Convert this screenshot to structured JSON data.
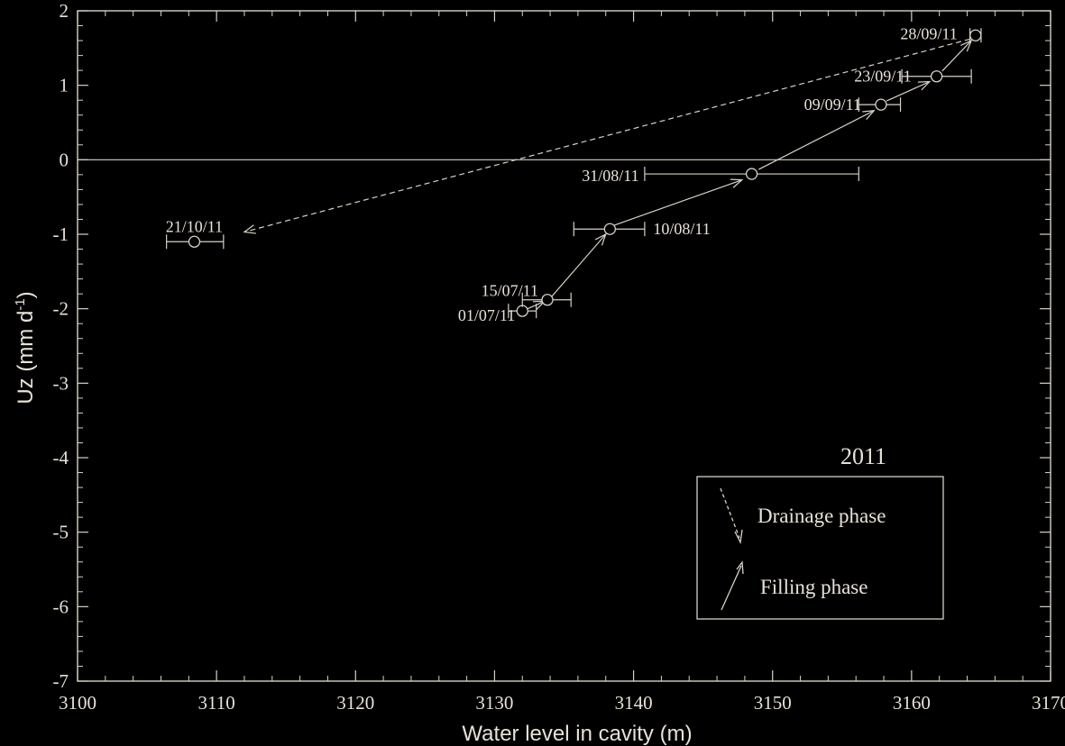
{
  "chart_data": {
    "type": "scatter",
    "title": "",
    "xlabel": "Water level in cavity (m)",
    "ylabel": "Uz (mm d",
    "ylabel_superscript": "-1",
    "ylabel_suffix": ")",
    "xlim": [
      3100,
      3170
    ],
    "ylim": [
      -7,
      2
    ],
    "xticks": [
      "3100",
      "3110",
      "3120",
      "3130",
      "3140",
      "3150",
      "3160",
      "3170"
    ],
    "yticks": [
      "-7",
      "-6",
      "-5",
      "-4",
      "-3",
      "-2",
      "-1",
      "0",
      "1",
      "2"
    ],
    "grid": false,
    "zero_line": true,
    "year_label": "2011",
    "legend": {
      "placement": "lower-right",
      "entries": [
        {
          "label": "Drainage phase",
          "style": "dashed-arrow"
        },
        {
          "label": "Filling phase",
          "style": "solid-arrow"
        }
      ]
    },
    "points": [
      {
        "label": "01/07/11",
        "x": 3132.0,
        "y": -2.03,
        "xerr_low": 3131.0,
        "xerr_high": 3133.0
      },
      {
        "label": "15/07/11",
        "x": 3133.8,
        "y": -1.88,
        "xerr_low": 3132.0,
        "xerr_high": 3135.5
      },
      {
        "label": "10/08/11",
        "x": 3138.3,
        "y": -0.93,
        "xerr_low": 3135.7,
        "xerr_high": 3140.8
      },
      {
        "label": "31/08/11",
        "x": 3148.5,
        "y": -0.19,
        "xerr_low": 3140.8,
        "xerr_high": 3156.2
      },
      {
        "label": "09/09/11",
        "x": 3157.8,
        "y": 0.74,
        "xerr_low": 3156.2,
        "xerr_high": 3159.2
      },
      {
        "label": "23/09/11",
        "x": 3161.8,
        "y": 1.12,
        "xerr_low": 3159.3,
        "xerr_high": 3164.3
      },
      {
        "label": "28/09/11",
        "x": 3164.6,
        "y": 1.67,
        "xerr_low": 3164.2,
        "xerr_high": 3165.0
      },
      {
        "label": "21/10/11",
        "x": 3108.4,
        "y": -1.1,
        "xerr_low": 3106.4,
        "xerr_high": 3110.5
      }
    ],
    "arrows": [
      {
        "from": [
          3132.0,
          -2.03
        ],
        "to": [
          3133.6,
          -1.9
        ],
        "style": "solid"
      },
      {
        "from": [
          3134.0,
          -1.86
        ],
        "to": [
          3138.0,
          -1.0
        ],
        "style": "solid"
      },
      {
        "from": [
          3138.6,
          -0.88
        ],
        "to": [
          3147.8,
          -0.27
        ],
        "style": "solid"
      },
      {
        "from": [
          3149.0,
          -0.13
        ],
        "to": [
          3157.3,
          0.66
        ],
        "style": "solid"
      },
      {
        "from": [
          3158.2,
          0.79
        ],
        "to": [
          3161.3,
          1.05
        ],
        "style": "solid"
      },
      {
        "from": [
          3162.2,
          1.19
        ],
        "to": [
          3164.3,
          1.6
        ],
        "style": "solid"
      },
      {
        "from": [
          3164.2,
          1.62
        ],
        "to": [
          3112.0,
          -0.97
        ],
        "style": "dashed"
      }
    ]
  }
}
